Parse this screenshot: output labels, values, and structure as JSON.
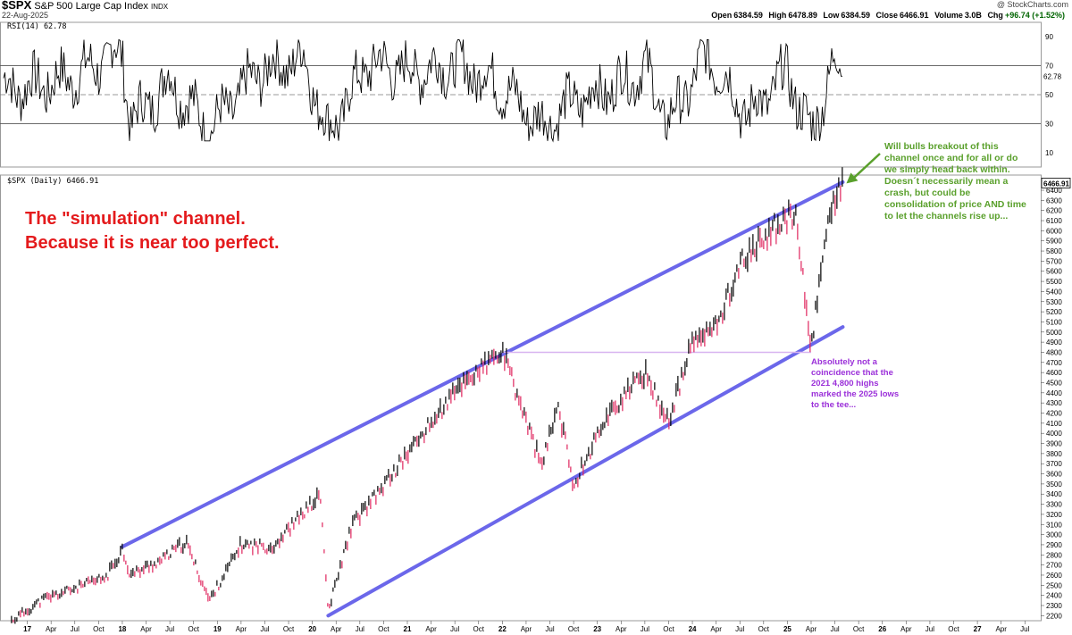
{
  "header": {
    "symbol": "$SPX",
    "name": "S&P 500 Large Cap Index",
    "exchange": "INDX",
    "date": "22-Aug-2025",
    "brand": "@ StockCharts.com",
    "stats": {
      "open_label": "Open",
      "open": "6384.59",
      "high_label": "High",
      "high": "6478.89",
      "low_label": "Low",
      "low": "6384.59",
      "close_label": "Close",
      "close": "6466.91",
      "volume_label": "Volume",
      "volume": "3.0B",
      "chg_label": "Chg",
      "chg": "+96.74 (+1.52%)"
    }
  },
  "colors": {
    "channel": "#5b57e8",
    "candle_up": "#000000",
    "candle_down": "#e0245e",
    "rsi_line": "#000000",
    "rsi_overbought_fill": "#3d8a3d",
    "horizontal_line": "#d8b4f0",
    "annotation_red": "#e41a1c",
    "annotation_green": "#5aa02c",
    "annotation_purple": "#9b30d9"
  },
  "annotations": {
    "title_line1": "The \"simulation\" channel.",
    "title_line2": "Because it is near too perfect.",
    "green": "Will bulls breakout of this channel once and for all or do we simply head back within. Doesn´t necessarily mean a crash, but could be consolidation of price AND time to let the channels rise up...",
    "purple": "Absolutely not a coincidence that the 2021 4,800 highs marked the 2025 lows to the tee..."
  },
  "chart_data": [
    {
      "type": "line",
      "panel": "RSI",
      "label": "RSI(14) 62.78",
      "last_value": 62.78,
      "y_ticks": [
        10,
        30,
        50,
        70,
        90
      ],
      "ylim": [
        0,
        100
      ],
      "reference_lines": [
        30,
        50,
        70
      ],
      "x": [
        "2017-01",
        "2017-07",
        "2018-01",
        "2018-02",
        "2018-07",
        "2018-12",
        "2019-06",
        "2019-12",
        "2020-03",
        "2020-08",
        "2021-01",
        "2021-07",
        "2021-12",
        "2022-06",
        "2022-10",
        "2023-03",
        "2023-07",
        "2023-10",
        "2024-03",
        "2024-08",
        "2025-01",
        "2025-04",
        "2025-07",
        "2025-08"
      ],
      "y": [
        55,
        62,
        80,
        30,
        60,
        25,
        65,
        75,
        22,
        72,
        66,
        70,
        60,
        28,
        45,
        55,
        68,
        30,
        78,
        35,
        65,
        22,
        74,
        62.78
      ]
    },
    {
      "type": "line",
      "panel": "Price",
      "label": "$SPX (Daily) 6466.91",
      "last_value": 6466.91,
      "ylim": [
        2150,
        6550
      ],
      "y_ticks": [
        2200,
        2300,
        2400,
        2500,
        2600,
        2700,
        2800,
        2900,
        3000,
        3100,
        3200,
        3300,
        3400,
        3500,
        3600,
        3700,
        3800,
        3900,
        4000,
        4100,
        4200,
        4300,
        4400,
        4500,
        4600,
        4700,
        4800,
        4900,
        5000,
        5100,
        5200,
        5300,
        5400,
        5500,
        5600,
        5700,
        5800,
        5900,
        6000,
        6100,
        6200,
        6300,
        6400
      ],
      "x_ticks": [
        "17",
        "Apr",
        "Jul",
        "Oct",
        "18",
        "Apr",
        "Jul",
        "Oct",
        "19",
        "Apr",
        "Jul",
        "Oct",
        "20",
        "Apr",
        "Jul",
        "Oct",
        "21",
        "Apr",
        "Jul",
        "Oct",
        "22",
        "Apr",
        "Jul",
        "Oct",
        "23",
        "Apr",
        "Jul",
        "Oct",
        "24",
        "Apr",
        "Jul",
        "Oct",
        "25",
        "Apr",
        "Jul",
        "Oct",
        "26",
        "Apr",
        "Jul",
        "Oct",
        "27",
        "Apr",
        "Jul"
      ],
      "x_range": [
        "2016-10",
        "2027-09"
      ],
      "x": [
        "2016-11",
        "2017-03",
        "2017-07",
        "2017-11",
        "2018-01",
        "2018-02",
        "2018-06",
        "2018-09",
        "2018-12",
        "2019-04",
        "2019-08",
        "2019-12",
        "2020-02",
        "2020-03",
        "2020-06",
        "2020-09",
        "2021-01",
        "2021-05",
        "2021-08",
        "2022-01",
        "2022-06",
        "2022-08",
        "2022-10",
        "2023-02",
        "2023-07",
        "2023-10",
        "2024-01",
        "2024-04",
        "2024-07",
        "2024-12",
        "2025-02",
        "2025-04",
        "2025-06",
        "2025-08"
      ],
      "y": [
        2150,
        2360,
        2470,
        2580,
        2860,
        2600,
        2750,
        2930,
        2350,
        2900,
        2880,
        3230,
        3390,
        2240,
        3100,
        3380,
        3800,
        4200,
        4500,
        4800,
        3670,
        4300,
        3490,
        4150,
        4600,
        4110,
        4900,
        5050,
        5670,
        6090,
        6140,
        4840,
        6100,
        6467
      ],
      "channel": {
        "upper": {
          "x": [
            "2018-01",
            "2025-08"
          ],
          "y": [
            2880,
            6480
          ]
        },
        "lower": {
          "x": [
            "2020-03",
            "2025-08"
          ],
          "y": [
            2200,
            5050
          ]
        }
      },
      "horizontal_level": {
        "x": [
          "2022-01",
          "2025-04"
        ],
        "y": 4800
      }
    }
  ]
}
